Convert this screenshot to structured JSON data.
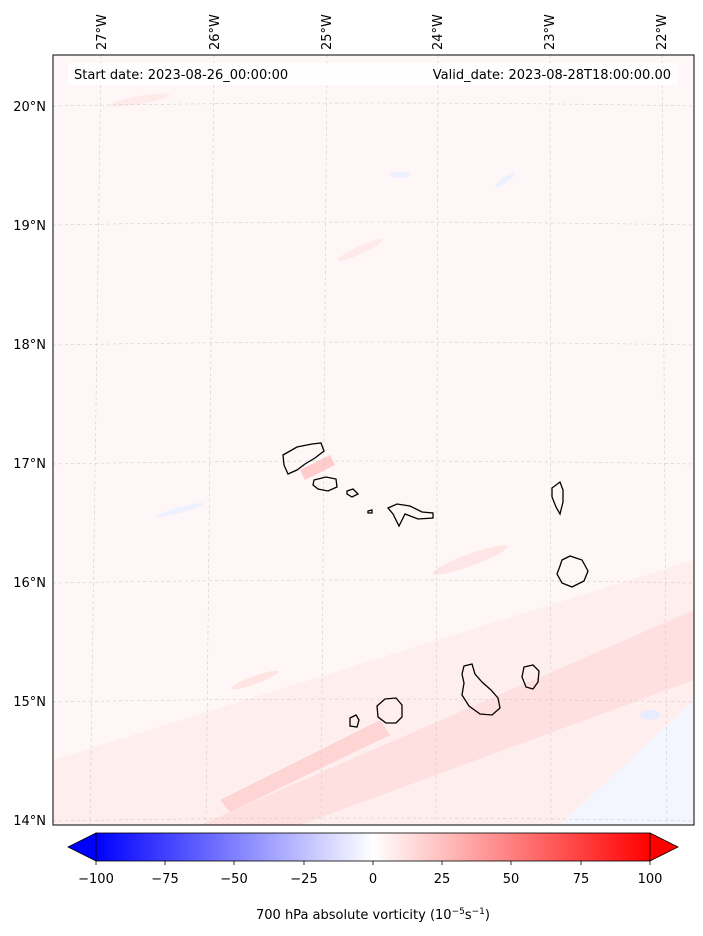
{
  "header": {
    "start_date": "Start date: 2023-08-26_00:00:00",
    "valid_date": "Valid_date: 2023-08-28T18:00:00.00"
  },
  "lon_labels": [
    "27°W",
    "26°W",
    "25°W",
    "24°W",
    "23°W",
    "22°W"
  ],
  "lat_labels": [
    "20°N",
    "19°N",
    "18°N",
    "17°N",
    "16°N",
    "15°N",
    "14°N"
  ],
  "colorbar": {
    "title_main": "700 hPa absolute vorticity (10",
    "title_exp1": "−5",
    "title_mid": "s",
    "title_exp2": "−1",
    "title_end": ")",
    "tick_labels": [
      "−100",
      "−75",
      "−50",
      "−25",
      "0",
      "25",
      "50",
      "75",
      "100"
    ],
    "min": -100,
    "max": 100,
    "extend": "both",
    "colors": {
      "negative": "#0000ff",
      "zero": "#ffffff",
      "positive": "#ff0000"
    }
  },
  "map": {
    "projection": "lambert-like conic",
    "gridlines": true,
    "islands": [
      "Santo Antão",
      "São Vicente",
      "Santa Luzia",
      "Branco",
      "São Nicolau",
      "Sal",
      "Boa Vista",
      "Maio",
      "Santiago",
      "Fogo",
      "Brava"
    ]
  }
}
